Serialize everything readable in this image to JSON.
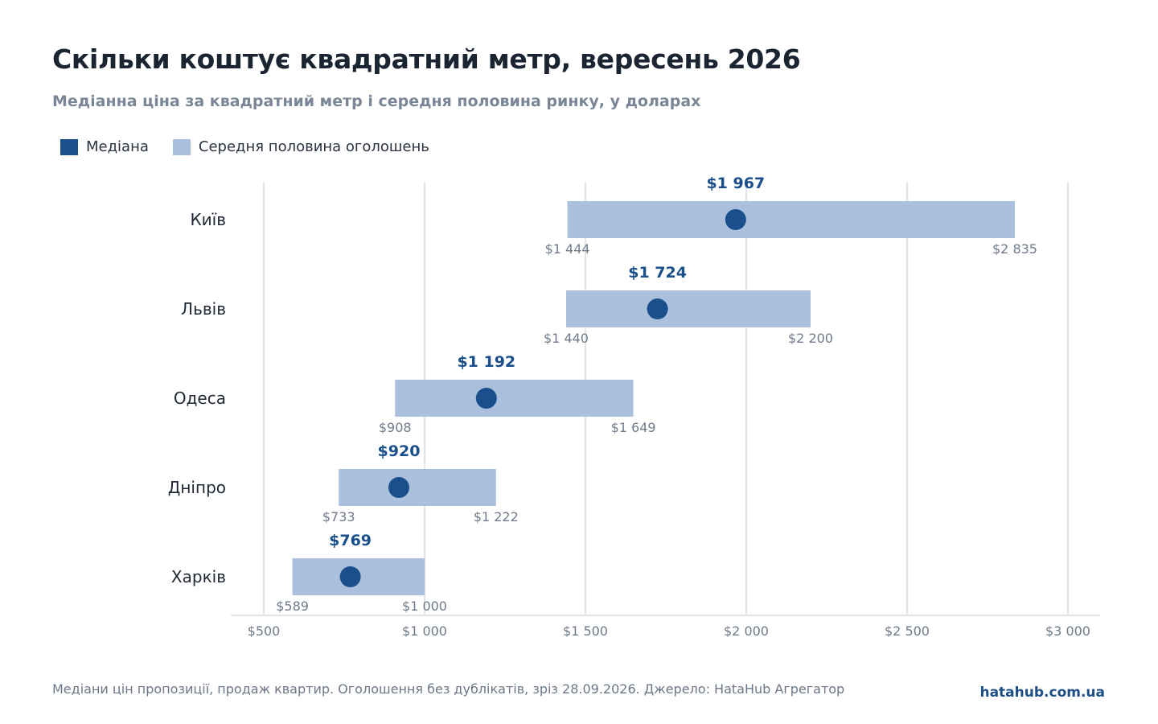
{
  "title": "Скільки коштує квадратний метр, вересень 2026",
  "subtitle": "Медіанна ціна за квадратний метр і середня половина ринку, у доларах",
  "legend": {
    "median_label": "Медіана",
    "range_label": "Середня половина оголошень"
  },
  "footer": {
    "note": "Медіани цін пропозиції, продаж квартир. Оголошення без дублікатів, зріз 28.09.2026. Джерело: HataHub Агрегатор",
    "brand": "hatahub.com.ua"
  },
  "colors": {
    "median": "#1a4f8b",
    "range": "#aac0dd",
    "grid": "#e1e5ea",
    "axis_text": "#707b8b",
    "range_label_text": "#707b8b"
  },
  "chart_data": {
    "type": "range-dot",
    "title": "Скільки коштує квадратний метр, вересень 2026",
    "subtitle": "Медіанна ціна за квадратний метр і середня половина ринку, у доларах",
    "xlim": [
      500,
      3000
    ],
    "x_ticks": [
      500,
      1000,
      1500,
      2000,
      2500,
      3000
    ],
    "x_tick_labels": [
      "$500",
      "$1 000",
      "$1 500",
      "$2 000",
      "$2 500",
      "$3 000"
    ],
    "grid": true,
    "legend_position": "top-left",
    "categories": [
      "Київ",
      "Львів",
      "Одеса",
      "Дніпро",
      "Харків"
    ],
    "series": [
      {
        "name": "Медіана",
        "values": [
          1967,
          1724,
          1192,
          920,
          769
        ],
        "labels": [
          "$1 967",
          "$1 724",
          "$1 192",
          "$920",
          "$769"
        ]
      },
      {
        "name": "Середня половина оголошень",
        "low": [
          1444,
          1440,
          908,
          733,
          589
        ],
        "high": [
          2835,
          2200,
          1649,
          1222,
          1000
        ],
        "low_labels": [
          "$1 444",
          "$1 440",
          "$908",
          "$733",
          "$589"
        ],
        "high_labels": [
          "$2 835",
          "$2 200",
          "$1 649",
          "$1 222",
          "$1 000"
        ]
      }
    ]
  }
}
